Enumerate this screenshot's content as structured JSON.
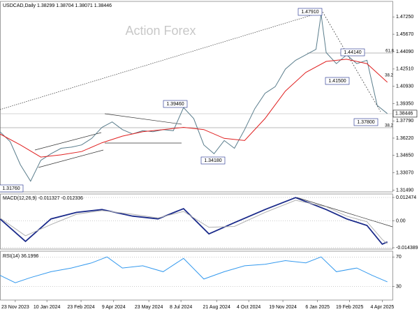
{
  "chart_data": [
    {
      "type": "line",
      "title": "USDCAD,Daily 1.38299 1.38704 1.38071 1.38446",
      "watermark": "Action Forex",
      "last_price": 1.38446,
      "annotations": [
        "1.47910",
        "1.44140",
        "1.41500",
        "1.39460",
        "1.37800",
        "1.34180",
        "1.31760",
        "61.8",
        "38.2",
        "38.2"
      ],
      "xlim": [
        0,
        77
      ],
      "ylim": [
        1.3133,
        1.4866
      ],
      "yticks": [
        {
          "value": 1.4725,
          "label": "1.47250"
        },
        {
          "value": 1.4567,
          "label": "1.45670"
        },
        {
          "value": 1.4409,
          "label": "1.44090"
        },
        {
          "value": 1.4251,
          "label": "1.42510"
        },
        {
          "value": 1.4093,
          "label": "1.40930"
        },
        {
          "value": 1.3935,
          "label": "1.39350"
        },
        {
          "value": 1.3779,
          "label": "1.37790"
        },
        {
          "value": 1.3622,
          "label": "1.36220"
        },
        {
          "value": 1.3465,
          "label": "1.34650"
        },
        {
          "value": 1.3307,
          "label": "1.33070"
        },
        {
          "value": 1.3149,
          "label": "1.31490"
        }
      ],
      "series": [
        {
          "color": "#5a7d8c",
          "x": [
            0,
            2,
            4,
            6,
            8,
            10,
            12,
            14,
            16,
            18,
            20,
            22,
            24,
            26,
            28,
            30,
            32,
            34,
            36,
            38,
            40,
            42,
            44,
            46,
            48,
            50,
            52,
            54,
            56,
            58,
            60,
            62,
            63,
            64,
            66,
            68,
            70,
            72,
            74,
            76
          ],
          "values": [
            1.368,
            1.359,
            1.338,
            1.323,
            1.342,
            1.348,
            1.353,
            1.354,
            1.356,
            1.362,
            1.372,
            1.377,
            1.37,
            1.366,
            1.369,
            1.368,
            1.37,
            1.369,
            1.39,
            1.38,
            1.356,
            1.348,
            1.36,
            1.353,
            1.37,
            1.389,
            1.403,
            1.409,
            1.425,
            1.433,
            1.438,
            1.443,
            1.475,
            1.44,
            1.43,
            1.438,
            1.43,
            1.433,
            1.392,
            1.3845
          ]
        },
        {
          "color": "#e02020",
          "x": [
            0,
            4,
            8,
            12,
            16,
            20,
            24,
            28,
            32,
            36,
            40,
            44,
            48,
            52,
            56,
            60,
            64,
            68,
            72,
            76
          ],
          "values": [
            1.366,
            1.356,
            1.345,
            1.347,
            1.35,
            1.358,
            1.364,
            1.368,
            1.37,
            1.372,
            1.37,
            1.362,
            1.36,
            1.38,
            1.405,
            1.422,
            1.432,
            1.434,
            1.43,
            1.413
          ]
        }
      ]
    },
    {
      "type": "line",
      "title": "MACD(12,26,9) -0.011327 -0.012336",
      "xlim": [
        0,
        77
      ],
      "ylim": [
        -0.01514,
        0.01434
      ],
      "yticks": [
        0.012474,
        {
          "value": 0,
          "label": "0.00"
        },
        -0.014389
      ],
      "series": [
        {
          "color": "#1a2a8a",
          "x": [
            0,
            5,
            10,
            15,
            20,
            26,
            31,
            36,
            41,
            46,
            52,
            58,
            64,
            68,
            72,
            75,
            76
          ],
          "values": [
            0.001,
            -0.011,
            0.001,
            0.0045,
            0.006,
            0.0025,
            0.001,
            0.0065,
            -0.007,
            -0.001,
            0.006,
            0.0124,
            0.006,
            0.001,
            -0.0025,
            -0.0125,
            -0.0113
          ]
        },
        {
          "color": "#b0b0b0",
          "x": [
            0,
            5,
            10,
            15,
            20,
            26,
            31,
            36,
            41,
            46,
            52,
            58,
            64,
            68,
            72,
            75,
            76
          ],
          "values": [
            0.0015,
            -0.008,
            -0.002,
            0.0035,
            0.0055,
            0.0035,
            0.0015,
            0.005,
            -0.0035,
            -0.003,
            0.0045,
            0.011,
            0.0075,
            0.0025,
            -0.0005,
            -0.01,
            -0.0123
          ]
        }
      ]
    },
    {
      "type": "line",
      "title": "RSI(14) 36.1996",
      "xlim": [
        0,
        77
      ],
      "ylim": [
        11.5,
        77.8
      ],
      "yticks": [
        70,
        30
      ],
      "xticks": [
        {
          "value": 3,
          "label": "23 Nov 2023"
        },
        {
          "value": 9.2,
          "label": "10 Jan 2024"
        },
        {
          "value": 15.9,
          "label": "23 Feb 2024"
        },
        {
          "value": 22.3,
          "label": "9 Apr 2024"
        },
        {
          "value": 29.2,
          "label": "23 May 2024"
        },
        {
          "value": 35.5,
          "label": "8 Jul 2024"
        },
        {
          "value": 42.5,
          "label": "21 Aug 2024"
        },
        {
          "value": 48.8,
          "label": "4 Oct 2024"
        },
        {
          "value": 55.5,
          "label": "19 Nov 2024"
        },
        {
          "value": 62.3,
          "label": "6 Jan 2025"
        },
        {
          "value": 68.6,
          "label": "19 Feb 2025"
        },
        {
          "value": 75,
          "label": "4 Apr 2025"
        }
      ],
      "series": [
        {
          "color": "#3399ee",
          "x": [
            0,
            3,
            6,
            10,
            14,
            18,
            21,
            24,
            28,
            32,
            36,
            40,
            44,
            48,
            52,
            56,
            60,
            63,
            66,
            70,
            73,
            76
          ],
          "values": [
            45,
            35,
            42,
            50,
            55,
            62,
            70,
            55,
            58,
            50,
            68,
            40,
            50,
            58,
            60,
            65,
            62,
            70,
            50,
            55,
            45,
            36.2
          ]
        }
      ]
    }
  ]
}
